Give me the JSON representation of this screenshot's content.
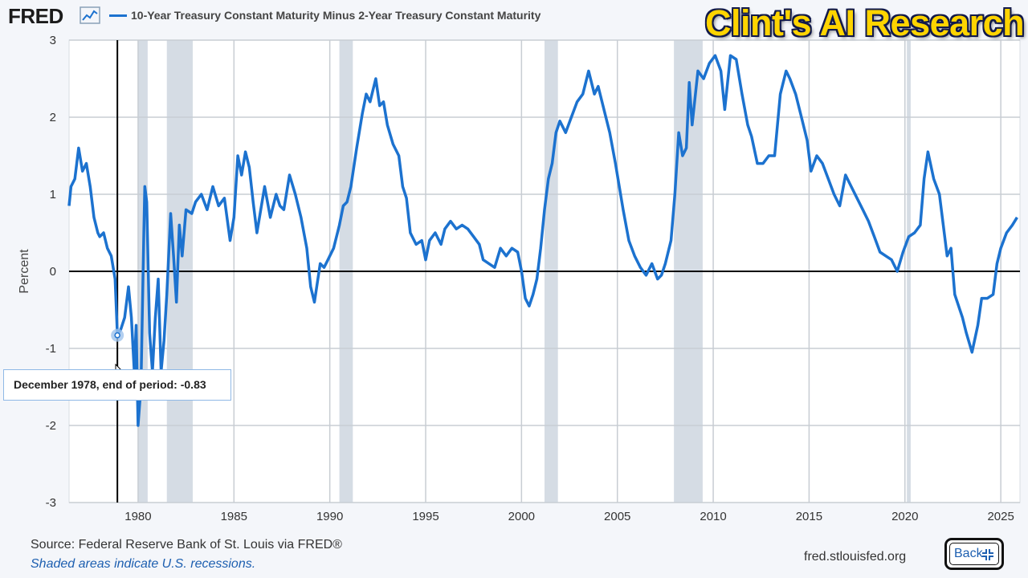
{
  "header": {
    "logo_text": "FRED",
    "logo_graph_icon": "line-graph-icon",
    "series_label": "10-Year Treasury Constant Maturity Minus 2-Year Treasury Constant Maturity",
    "watermark": "Clint's AI Research"
  },
  "tooltip": {
    "text": "December 1978, end of period:  -0.83"
  },
  "footer": {
    "source": "Source: Federal Reserve Bank of St. Louis via FRED®",
    "shaded_note": "Shaded areas indicate U.S. recessions.",
    "url": "fred.stlouisfed.org",
    "back_label": "Back",
    "back_icon": "collapse-icon"
  },
  "colors": {
    "series": "#1c72cf",
    "recession": "#d5dce4",
    "grid": "#c8cdd3",
    "zero_line": "#000000",
    "plot_bg": "#ffffff"
  },
  "chart_data": {
    "type": "line",
    "title": "10-Year Treasury Constant Maturity Minus 2-Year Treasury Constant Maturity",
    "ylabel": "Percent",
    "xlabel": "",
    "xlim": [
      1976.4,
      2026.0
    ],
    "ylim": [
      -3,
      3
    ],
    "x_ticks": [
      1980,
      1985,
      1990,
      1995,
      2000,
      2005,
      2010,
      2015,
      2020,
      2025
    ],
    "x_tick_labels": [
      "1980",
      "1985",
      "1990",
      "1995",
      "2000",
      "2005",
      "2010",
      "2015",
      "2020",
      "2025"
    ],
    "y_ticks": [
      -3,
      -2,
      -1,
      0,
      1,
      2,
      3
    ],
    "y_tick_labels": [
      "-3",
      "-2",
      "-1",
      "0",
      "1",
      "2",
      "3"
    ],
    "grid": true,
    "recessions": [
      [
        1980.0,
        1980.5
      ],
      [
        1981.5,
        1982.85
      ],
      [
        1990.5,
        1991.2
      ],
      [
        2001.2,
        2001.9
      ],
      [
        2007.95,
        2009.45
      ],
      [
        2020.1,
        2020.3
      ]
    ],
    "crosshair_x": 1978.92,
    "highlight_point": {
      "x": 1978.92,
      "y": -0.83
    },
    "series": [
      {
        "name": "10-Year Treasury Constant Maturity Minus 2-Year Treasury Constant Maturity",
        "points": [
          [
            1976.4,
            0.85
          ],
          [
            1976.5,
            1.1
          ],
          [
            1976.7,
            1.2
          ],
          [
            1976.9,
            1.6
          ],
          [
            1977.1,
            1.3
          ],
          [
            1977.3,
            1.4
          ],
          [
            1977.5,
            1.1
          ],
          [
            1977.7,
            0.7
          ],
          [
            1977.9,
            0.5
          ],
          [
            1978.0,
            0.45
          ],
          [
            1978.2,
            0.5
          ],
          [
            1978.4,
            0.3
          ],
          [
            1978.6,
            0.2
          ],
          [
            1978.8,
            -0.1
          ],
          [
            1978.92,
            -0.83
          ],
          [
            1979.1,
            -0.75
          ],
          [
            1979.3,
            -0.6
          ],
          [
            1979.5,
            -0.2
          ],
          [
            1979.65,
            -0.6
          ],
          [
            1979.8,
            -1.3
          ],
          [
            1979.9,
            -0.7
          ],
          [
            1980.0,
            -2.0
          ],
          [
            1980.15,
            -1.5
          ],
          [
            1980.3,
            0.5
          ],
          [
            1980.35,
            1.1
          ],
          [
            1980.45,
            0.9
          ],
          [
            1980.6,
            -0.8
          ],
          [
            1980.75,
            -1.3
          ],
          [
            1980.9,
            -0.6
          ],
          [
            1981.05,
            -0.1
          ],
          [
            1981.2,
            -1.3
          ],
          [
            1981.35,
            -0.9
          ],
          [
            1981.5,
            -0.3
          ],
          [
            1981.7,
            0.75
          ],
          [
            1981.85,
            0.2
          ],
          [
            1982.0,
            -0.4
          ],
          [
            1982.15,
            0.6
          ],
          [
            1982.3,
            0.2
          ],
          [
            1982.5,
            0.8
          ],
          [
            1982.8,
            0.75
          ],
          [
            1983.0,
            0.9
          ],
          [
            1983.3,
            1.0
          ],
          [
            1983.6,
            0.8
          ],
          [
            1983.9,
            1.1
          ],
          [
            1984.2,
            0.85
          ],
          [
            1984.5,
            0.95
          ],
          [
            1984.8,
            0.4
          ],
          [
            1985.0,
            0.7
          ],
          [
            1985.2,
            1.5
          ],
          [
            1985.4,
            1.25
          ],
          [
            1985.6,
            1.55
          ],
          [
            1985.8,
            1.35
          ],
          [
            1986.0,
            0.9
          ],
          [
            1986.2,
            0.5
          ],
          [
            1986.4,
            0.8
          ],
          [
            1986.6,
            1.1
          ],
          [
            1986.9,
            0.7
          ],
          [
            1987.2,
            1.0
          ],
          [
            1987.4,
            0.85
          ],
          [
            1987.6,
            0.8
          ],
          [
            1987.9,
            1.25
          ],
          [
            1988.2,
            1.0
          ],
          [
            1988.5,
            0.7
          ],
          [
            1988.8,
            0.3
          ],
          [
            1989.0,
            -0.2
          ],
          [
            1989.2,
            -0.4
          ],
          [
            1989.5,
            0.1
          ],
          [
            1989.7,
            0.05
          ],
          [
            1989.9,
            0.15
          ],
          [
            1990.2,
            0.3
          ],
          [
            1990.5,
            0.6
          ],
          [
            1990.7,
            0.85
          ],
          [
            1990.9,
            0.9
          ],
          [
            1991.1,
            1.1
          ],
          [
            1991.4,
            1.6
          ],
          [
            1991.7,
            2.05
          ],
          [
            1991.9,
            2.3
          ],
          [
            1992.1,
            2.2
          ],
          [
            1992.4,
            2.5
          ],
          [
            1992.6,
            2.15
          ],
          [
            1992.8,
            2.2
          ],
          [
            1993.0,
            1.9
          ],
          [
            1993.3,
            1.65
          ],
          [
            1993.6,
            1.5
          ],
          [
            1993.8,
            1.1
          ],
          [
            1994.0,
            0.95
          ],
          [
            1994.2,
            0.5
          ],
          [
            1994.5,
            0.35
          ],
          [
            1994.8,
            0.4
          ],
          [
            1995.0,
            0.15
          ],
          [
            1995.2,
            0.4
          ],
          [
            1995.5,
            0.5
          ],
          [
            1995.8,
            0.35
          ],
          [
            1996.0,
            0.55
          ],
          [
            1996.3,
            0.65
          ],
          [
            1996.6,
            0.55
          ],
          [
            1996.9,
            0.6
          ],
          [
            1997.2,
            0.55
          ],
          [
            1997.5,
            0.45
          ],
          [
            1997.8,
            0.35
          ],
          [
            1998.0,
            0.15
          ],
          [
            1998.3,
            0.1
          ],
          [
            1998.6,
            0.05
          ],
          [
            1998.9,
            0.3
          ],
          [
            1999.2,
            0.2
          ],
          [
            1999.5,
            0.3
          ],
          [
            1999.8,
            0.25
          ],
          [
            2000.0,
            0.0
          ],
          [
            2000.2,
            -0.35
          ],
          [
            2000.4,
            -0.45
          ],
          [
            2000.6,
            -0.3
          ],
          [
            2000.8,
            -0.1
          ],
          [
            2001.0,
            0.3
          ],
          [
            2001.2,
            0.8
          ],
          [
            2001.4,
            1.2
          ],
          [
            2001.6,
            1.4
          ],
          [
            2001.8,
            1.8
          ],
          [
            2002.0,
            1.95
          ],
          [
            2002.3,
            1.8
          ],
          [
            2002.6,
            2.0
          ],
          [
            2002.9,
            2.2
          ],
          [
            2003.2,
            2.3
          ],
          [
            2003.5,
            2.6
          ],
          [
            2003.8,
            2.3
          ],
          [
            2004.0,
            2.4
          ],
          [
            2004.3,
            2.1
          ],
          [
            2004.6,
            1.8
          ],
          [
            2004.9,
            1.4
          ],
          [
            2005.1,
            1.1
          ],
          [
            2005.3,
            0.8
          ],
          [
            2005.6,
            0.4
          ],
          [
            2005.9,
            0.2
          ],
          [
            2006.2,
            0.05
          ],
          [
            2006.5,
            -0.05
          ],
          [
            2006.8,
            0.1
          ],
          [
            2007.1,
            -0.1
          ],
          [
            2007.3,
            -0.05
          ],
          [
            2007.5,
            0.1
          ],
          [
            2007.8,
            0.4
          ],
          [
            2008.0,
            1.0
          ],
          [
            2008.2,
            1.8
          ],
          [
            2008.4,
            1.5
          ],
          [
            2008.6,
            1.6
          ],
          [
            2008.75,
            2.45
          ],
          [
            2008.9,
            1.9
          ],
          [
            2009.2,
            2.6
          ],
          [
            2009.5,
            2.5
          ],
          [
            2009.8,
            2.7
          ],
          [
            2010.1,
            2.8
          ],
          [
            2010.4,
            2.6
          ],
          [
            2010.6,
            2.1
          ],
          [
            2010.9,
            2.8
          ],
          [
            2011.2,
            2.75
          ],
          [
            2011.5,
            2.3
          ],
          [
            2011.8,
            1.9
          ],
          [
            2012.0,
            1.75
          ],
          [
            2012.3,
            1.4
          ],
          [
            2012.6,
            1.4
          ],
          [
            2012.9,
            1.5
          ],
          [
            2013.2,
            1.5
          ],
          [
            2013.5,
            2.3
          ],
          [
            2013.8,
            2.6
          ],
          [
            2014.0,
            2.5
          ],
          [
            2014.3,
            2.3
          ],
          [
            2014.6,
            2.0
          ],
          [
            2014.9,
            1.7
          ],
          [
            2015.1,
            1.3
          ],
          [
            2015.4,
            1.5
          ],
          [
            2015.7,
            1.4
          ],
          [
            2016.0,
            1.2
          ],
          [
            2016.3,
            1.0
          ],
          [
            2016.6,
            0.85
          ],
          [
            2016.9,
            1.25
          ],
          [
            2017.2,
            1.1
          ],
          [
            2017.5,
            0.95
          ],
          [
            2017.8,
            0.8
          ],
          [
            2018.1,
            0.65
          ],
          [
            2018.4,
            0.45
          ],
          [
            2018.7,
            0.25
          ],
          [
            2019.0,
            0.2
          ],
          [
            2019.3,
            0.15
          ],
          [
            2019.6,
            0.0
          ],
          [
            2019.9,
            0.25
          ],
          [
            2020.2,
            0.45
          ],
          [
            2020.5,
            0.5
          ],
          [
            2020.8,
            0.6
          ],
          [
            2021.0,
            1.2
          ],
          [
            2021.2,
            1.55
          ],
          [
            2021.5,
            1.2
          ],
          [
            2021.8,
            1.0
          ],
          [
            2022.0,
            0.6
          ],
          [
            2022.2,
            0.2
          ],
          [
            2022.4,
            0.3
          ],
          [
            2022.6,
            -0.3
          ],
          [
            2022.8,
            -0.45
          ],
          [
            2023.0,
            -0.6
          ],
          [
            2023.2,
            -0.8
          ],
          [
            2023.5,
            -1.05
          ],
          [
            2023.8,
            -0.7
          ],
          [
            2024.0,
            -0.35
          ],
          [
            2024.3,
            -0.35
          ],
          [
            2024.6,
            -0.3
          ],
          [
            2024.8,
            0.1
          ],
          [
            2025.0,
            0.3
          ],
          [
            2025.3,
            0.5
          ],
          [
            2025.6,
            0.6
          ],
          [
            2025.85,
            0.7
          ]
        ]
      }
    ]
  }
}
